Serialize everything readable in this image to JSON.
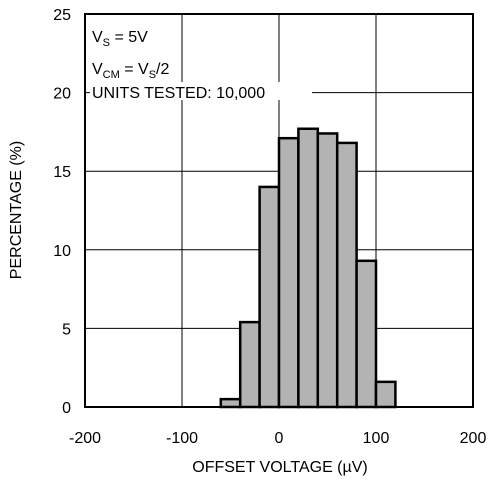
{
  "chart_data": {
    "type": "bar",
    "title": "",
    "xlabel": "OFFSET VOLTAGE (µV)",
    "ylabel": "PERCENTAGE (%)",
    "xlim": [
      -200,
      200
    ],
    "ylim": [
      0,
      25
    ],
    "xticks": [
      "-200",
      "-100",
      "0",
      "100",
      "200"
    ],
    "yticks": [
      "0",
      "5",
      "10",
      "15",
      "20",
      "25"
    ],
    "grid": true,
    "bin_width": 20,
    "bins": [
      {
        "x0": -60,
        "x1": -40,
        "value": 0.5
      },
      {
        "x0": -40,
        "x1": -20,
        "value": 5.4
      },
      {
        "x0": -20,
        "x1": 0,
        "value": 14.0
      },
      {
        "x0": 0,
        "x1": 20,
        "value": 17.1
      },
      {
        "x0": 20,
        "x1": 40,
        "value": 17.7
      },
      {
        "x0": 40,
        "x1": 60,
        "value": 17.4
      },
      {
        "x0": 60,
        "x1": 80,
        "value": 16.8
      },
      {
        "x0": 80,
        "x1": 100,
        "value": 9.3
      },
      {
        "x0": 100,
        "x1": 120,
        "value": 1.6
      }
    ],
    "annotations": {
      "vs_main": "V",
      "vs_sub": "S",
      "vs_rest": " = 5V",
      "vcm_main": "V",
      "vcm_sub": "CM",
      "vcm_eq": " = V",
      "vcm_sub2": "S",
      "vcm_rest": "/2",
      "units": "UNITS TESTED: 10,000"
    },
    "colors": {
      "bar_fill": "#b3b3b3",
      "bar_stroke": "#000000",
      "grid": "#000000"
    }
  }
}
